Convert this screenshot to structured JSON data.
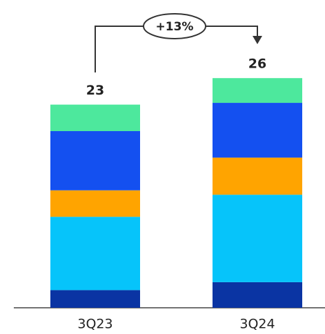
{
  "chart_data": {
    "type": "stacked_bar",
    "categories": [
      "3Q23",
      "3Q24"
    ],
    "series": [
      {
        "color": "#0a34a3",
        "values": [
          2.0,
          2.9
        ]
      },
      {
        "color": "#06c4fa",
        "values": [
          8.3,
          9.9
        ]
      },
      {
        "color": "#ffa400",
        "values": [
          3.0,
          4.2
        ]
      },
      {
        "color": "#1450f0",
        "values": [
          6.7,
          6.2
        ]
      },
      {
        "color": "#4de89d",
        "values": [
          3.0,
          2.8
        ]
      }
    ],
    "totals": [
      23,
      26
    ],
    "annotation": "+13%",
    "ylim": [
      0,
      30
    ]
  }
}
